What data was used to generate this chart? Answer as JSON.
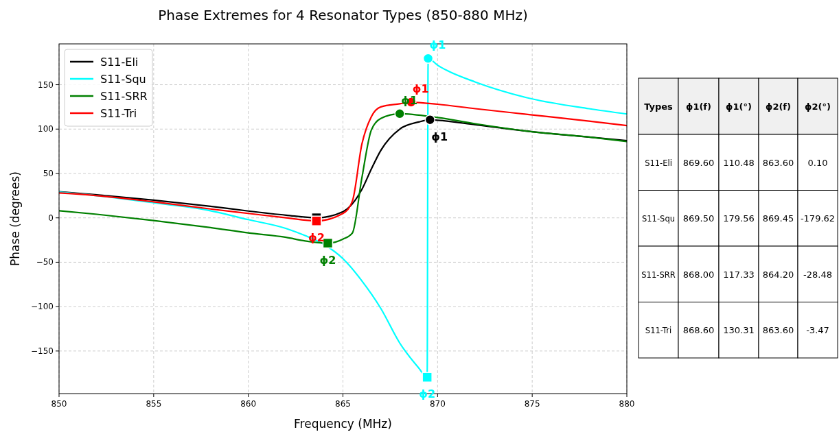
{
  "chart_data": [
    {
      "type": "line",
      "title": "Phase Extremes for 4 Resonator Types (850-880 MHz)",
      "xlabel": "Frequency (MHz)",
      "ylabel": "Phase (degrees)",
      "xlim": [
        850,
        880
      ],
      "xticks": [
        850,
        855,
        860,
        865,
        870,
        875,
        880
      ],
      "ylim": [
        -198,
        196
      ],
      "yticks": [
        -150,
        -100,
        -50,
        0,
        50,
        100,
        150
      ],
      "grid": true,
      "legend": "top left",
      "line_style": "solid",
      "series": [
        {
          "name": "S11-Eli",
          "color": "#000000",
          "x": [
            850,
            852,
            855,
            858,
            860,
            862,
            863.6,
            865,
            866,
            866.5,
            867,
            868,
            869,
            869.6,
            870,
            872,
            875,
            878,
            880
          ],
          "values": [
            29.4,
            26,
            20,
            13,
            7.7,
            3,
            0.1,
            7,
            32,
            55,
            76,
            100,
            108,
            110.48,
            110,
            105,
            97,
            91,
            87
          ]
        },
        {
          "name": "S11-Squ",
          "color": "#00ffff",
          "x": [
            850,
            852,
            855,
            858,
            860,
            862,
            863,
            864,
            865,
            866,
            867,
            868,
            869,
            869.45,
            869.5,
            870,
            870.5,
            872,
            875,
            878,
            880
          ],
          "values": [
            29,
            25,
            17,
            8,
            -2,
            -12,
            -20,
            -30,
            -46,
            -71,
            -102,
            -141,
            -169,
            -179.62,
            179.56,
            172,
            166,
            153,
            134,
            123,
            117
          ]
        },
        {
          "name": "S11-SRR",
          "color": "#008000",
          "x": [
            850,
            852,
            855,
            858,
            860,
            862,
            863,
            864.2,
            865,
            865.5,
            866,
            866.5,
            867,
            868,
            870,
            872,
            875,
            878,
            880
          ],
          "values": [
            8,
            4,
            -3,
            -11,
            -17,
            -22,
            -26,
            -28.48,
            -24,
            -17,
            45,
            99,
            112,
            117.33,
            113,
            106,
            97,
            91,
            86
          ]
        },
        {
          "name": "S11-Tri",
          "color": "#ff0000",
          "x": [
            850,
            852,
            855,
            858,
            860,
            862,
            863.6,
            865,
            865.5,
            866,
            866.5,
            867,
            868,
            868.6,
            870,
            872,
            875,
            878,
            880
          ],
          "values": [
            28,
            25,
            18,
            10,
            5,
            0,
            -3.47,
            5,
            19,
            83,
            114,
            125,
            128.5,
            130.31,
            128,
            123,
            116,
            109,
            104
          ]
        },
        {
          "type": "scatter",
          "marker": "circle",
          "x": [
            869.6,
            869.5,
            868,
            868.6
          ],
          "values": [
            110.48,
            179.56,
            117.33,
            130.31
          ],
          "colors": [
            "#000000",
            "#00ffff",
            "#008000",
            "#ff0000"
          ]
        },
        {
          "type": "scatter",
          "marker": "square",
          "x": [
            863.6,
            869.45,
            864.2,
            863.6
          ],
          "values": [
            0.1,
            -179.62,
            -28.48,
            -3.47
          ],
          "colors": [
            "#000000",
            "#00ffff",
            "#008000",
            "#ff0000"
          ]
        }
      ],
      "annotations": [
        {
          "text": "ϕ1",
          "x": 869.6,
          "y": 110.48
        },
        {
          "text": "ϕ1",
          "x": 869.5,
          "y": 179.56
        },
        {
          "text": "ϕ1",
          "x": 868,
          "y": 117.33
        },
        {
          "text": "ϕ1",
          "x": 868.6,
          "y": 130.31
        },
        {
          "text": "ϕ2",
          "x": 869.45,
          "y": -179.62
        },
        {
          "text": "ϕ2",
          "x": 864.2,
          "y": -28.48
        },
        {
          "text": "ϕ2",
          "x": 863.6,
          "y": -3.47
        }
      ]
    },
    {
      "type": "other",
      "annotations": [
        "Types",
        "ϕ1(f)",
        "ϕ1(°)",
        "ϕ2(f)",
        "ϕ2(°)",
        "S11-Eli",
        "869.60",
        "110.48",
        "863.60",
        "0.10",
        "S11-Squ",
        "869.50",
        "179.56",
        "869.45",
        "-179.62",
        "S11-SRR",
        "868.00",
        "117.33",
        "864.20",
        "-28.48",
        "S11-Tri",
        "868.60",
        "130.31",
        "863.60",
        "-3.47"
      ]
    }
  ]
}
